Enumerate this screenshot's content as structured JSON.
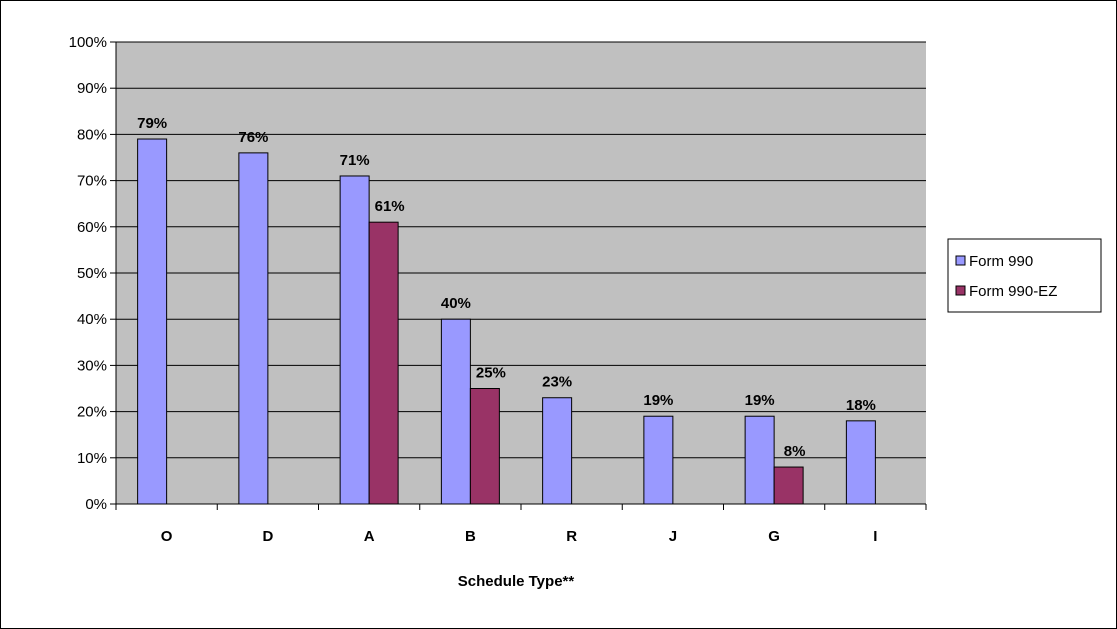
{
  "chart_data": {
    "type": "bar",
    "title": "",
    "xlabel": "Schedule Type**",
    "ylabel": "",
    "ylim": [
      0,
      100
    ],
    "y_ticks": [
      "0%",
      "10%",
      "20%",
      "30%",
      "40%",
      "50%",
      "60%",
      "70%",
      "80%",
      "90%",
      "100%"
    ],
    "categories": [
      "O",
      "D",
      "A",
      "B",
      "R",
      "J",
      "G",
      "I"
    ],
    "series": [
      {
        "name": "Form 990",
        "color": "#9999ff",
        "values": [
          79,
          76,
          71,
          40,
          23,
          19,
          19,
          18
        ],
        "labels": [
          "79%",
          "76%",
          "71%",
          "40%",
          "23%",
          "19%",
          "19%",
          "18%"
        ]
      },
      {
        "name": "Form 990-EZ",
        "color": "#993366",
        "values": [
          null,
          null,
          61,
          25,
          null,
          null,
          8,
          null
        ],
        "labels": [
          "",
          "",
          "61%",
          "25%",
          "",
          "",
          "8%",
          ""
        ]
      }
    ],
    "grid": true,
    "plot_background": "#c0c0c0",
    "legend_position": "right"
  }
}
